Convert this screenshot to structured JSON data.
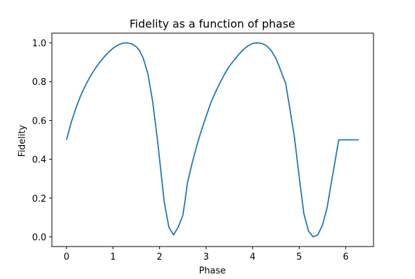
{
  "chart_data": {
    "type": "line",
    "title": "Fidelity as a function of phase",
    "xlabel": "Phase",
    "ylabel": "Fidelity",
    "xlim": [
      -0.314,
      6.597
    ],
    "ylim": [
      -0.05,
      1.05
    ],
    "xticks": [
      0,
      1,
      2,
      3,
      4,
      5,
      6
    ],
    "xtick_labels": [
      "0",
      "1",
      "2",
      "3",
      "4",
      "5",
      "6"
    ],
    "yticks": [
      0.0,
      0.2,
      0.4,
      0.6,
      0.8,
      1.0
    ],
    "ytick_labels": [
      "0.0",
      "0.2",
      "0.4",
      "0.6",
      "0.8",
      "1.0"
    ],
    "grid": false,
    "legend": "none",
    "series": [
      {
        "color": "#1f77b4",
        "x": [
          0.0,
          0.1,
          0.2,
          0.3,
          0.4,
          0.5,
          0.6,
          0.7,
          0.8,
          0.9,
          1.0,
          1.1,
          1.2,
          1.3,
          1.4,
          1.5,
          1.57,
          1.65,
          1.75,
          1.85,
          1.95,
          2.0,
          2.1,
          2.2,
          2.3,
          2.4,
          2.5,
          2.55,
          2.6,
          2.7,
          2.8,
          2.9,
          3.0,
          3.1,
          3.2,
          3.3,
          3.4,
          3.5,
          3.6,
          3.7,
          3.8,
          3.9,
          4.0,
          4.1,
          4.2,
          4.3,
          4.4,
          4.5,
          4.6,
          4.71,
          4.8,
          4.9,
          5.0,
          5.1,
          5.2,
          5.3,
          5.4,
          5.5,
          5.6,
          5.67,
          5.75,
          5.85,
          5.95,
          6.05,
          6.15,
          6.28
        ],
        "y": [
          0.5,
          0.589,
          0.662,
          0.725,
          0.777,
          0.822,
          0.861,
          0.896,
          0.925,
          0.951,
          0.972,
          0.988,
          0.998,
          1.0,
          0.995,
          0.98,
          0.96,
          0.92,
          0.84,
          0.7,
          0.51,
          0.4,
          0.18,
          0.05,
          0.01,
          0.05,
          0.11,
          0.19,
          0.28,
          0.38,
          0.47,
          0.55,
          0.62,
          0.69,
          0.745,
          0.795,
          0.84,
          0.88,
          0.91,
          0.94,
          0.965,
          0.985,
          0.997,
          1.0,
          0.997,
          0.985,
          0.96,
          0.92,
          0.86,
          0.79,
          0.66,
          0.51,
          0.31,
          0.12,
          0.03,
          0.0,
          0.01,
          0.06,
          0.15,
          0.25,
          0.36,
          0.5,
          0.5,
          0.5,
          0.5,
          0.5
        ]
      }
    ]
  }
}
